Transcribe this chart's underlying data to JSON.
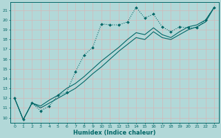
{
  "xlabel": "Humidex (Indice chaleur)",
  "bg_color": "#b2d8d8",
  "grid_color": "#c8e8e8",
  "line_color": "#006666",
  "xlim": [
    -0.5,
    23.5
  ],
  "ylim": [
    9.5,
    21.8
  ],
  "xticks": [
    0,
    1,
    2,
    3,
    4,
    5,
    6,
    7,
    8,
    9,
    10,
    11,
    12,
    13,
    14,
    15,
    16,
    17,
    18,
    19,
    20,
    21,
    22,
    23
  ],
  "yticks": [
    10,
    11,
    12,
    13,
    14,
    15,
    16,
    17,
    18,
    19,
    20,
    21
  ],
  "series1_x": [
    0,
    1,
    2,
    3,
    4,
    5,
    6,
    7,
    8,
    9,
    10,
    11,
    12,
    13,
    14,
    15,
    16,
    17,
    18,
    19,
    20,
    21,
    22,
    23
  ],
  "series1_y": [
    12.0,
    9.8,
    11.5,
    10.7,
    11.2,
    12.3,
    12.6,
    14.7,
    16.4,
    17.2,
    19.6,
    19.5,
    19.5,
    19.8,
    21.3,
    20.2,
    20.6,
    19.3,
    18.8,
    19.3,
    19.2,
    19.2,
    20.0,
    21.3
  ],
  "series2_x": [
    0,
    1,
    2,
    3,
    4,
    5,
    6,
    7,
    8,
    9,
    10,
    11,
    12,
    13,
    14,
    15,
    16,
    17,
    18,
    19,
    20,
    21,
    22,
    23
  ],
  "series2_y": [
    12.0,
    9.8,
    11.5,
    11.0,
    11.5,
    12.0,
    12.5,
    13.0,
    13.7,
    14.5,
    15.2,
    16.0,
    16.8,
    17.5,
    18.2,
    18.0,
    18.8,
    18.2,
    18.0,
    18.5,
    19.0,
    19.3,
    19.8,
    21.3
  ],
  "series3_x": [
    0,
    1,
    2,
    3,
    4,
    5,
    6,
    7,
    8,
    9,
    10,
    11,
    12,
    13,
    14,
    15,
    16,
    17,
    18,
    19,
    20,
    21,
    22,
    23
  ],
  "series3_y": [
    12.0,
    9.8,
    11.5,
    11.2,
    11.8,
    12.3,
    13.0,
    13.5,
    14.2,
    15.0,
    15.8,
    16.5,
    17.2,
    18.0,
    18.7,
    18.5,
    19.2,
    18.5,
    18.2,
    18.8,
    19.3,
    19.5,
    20.0,
    21.3
  ]
}
